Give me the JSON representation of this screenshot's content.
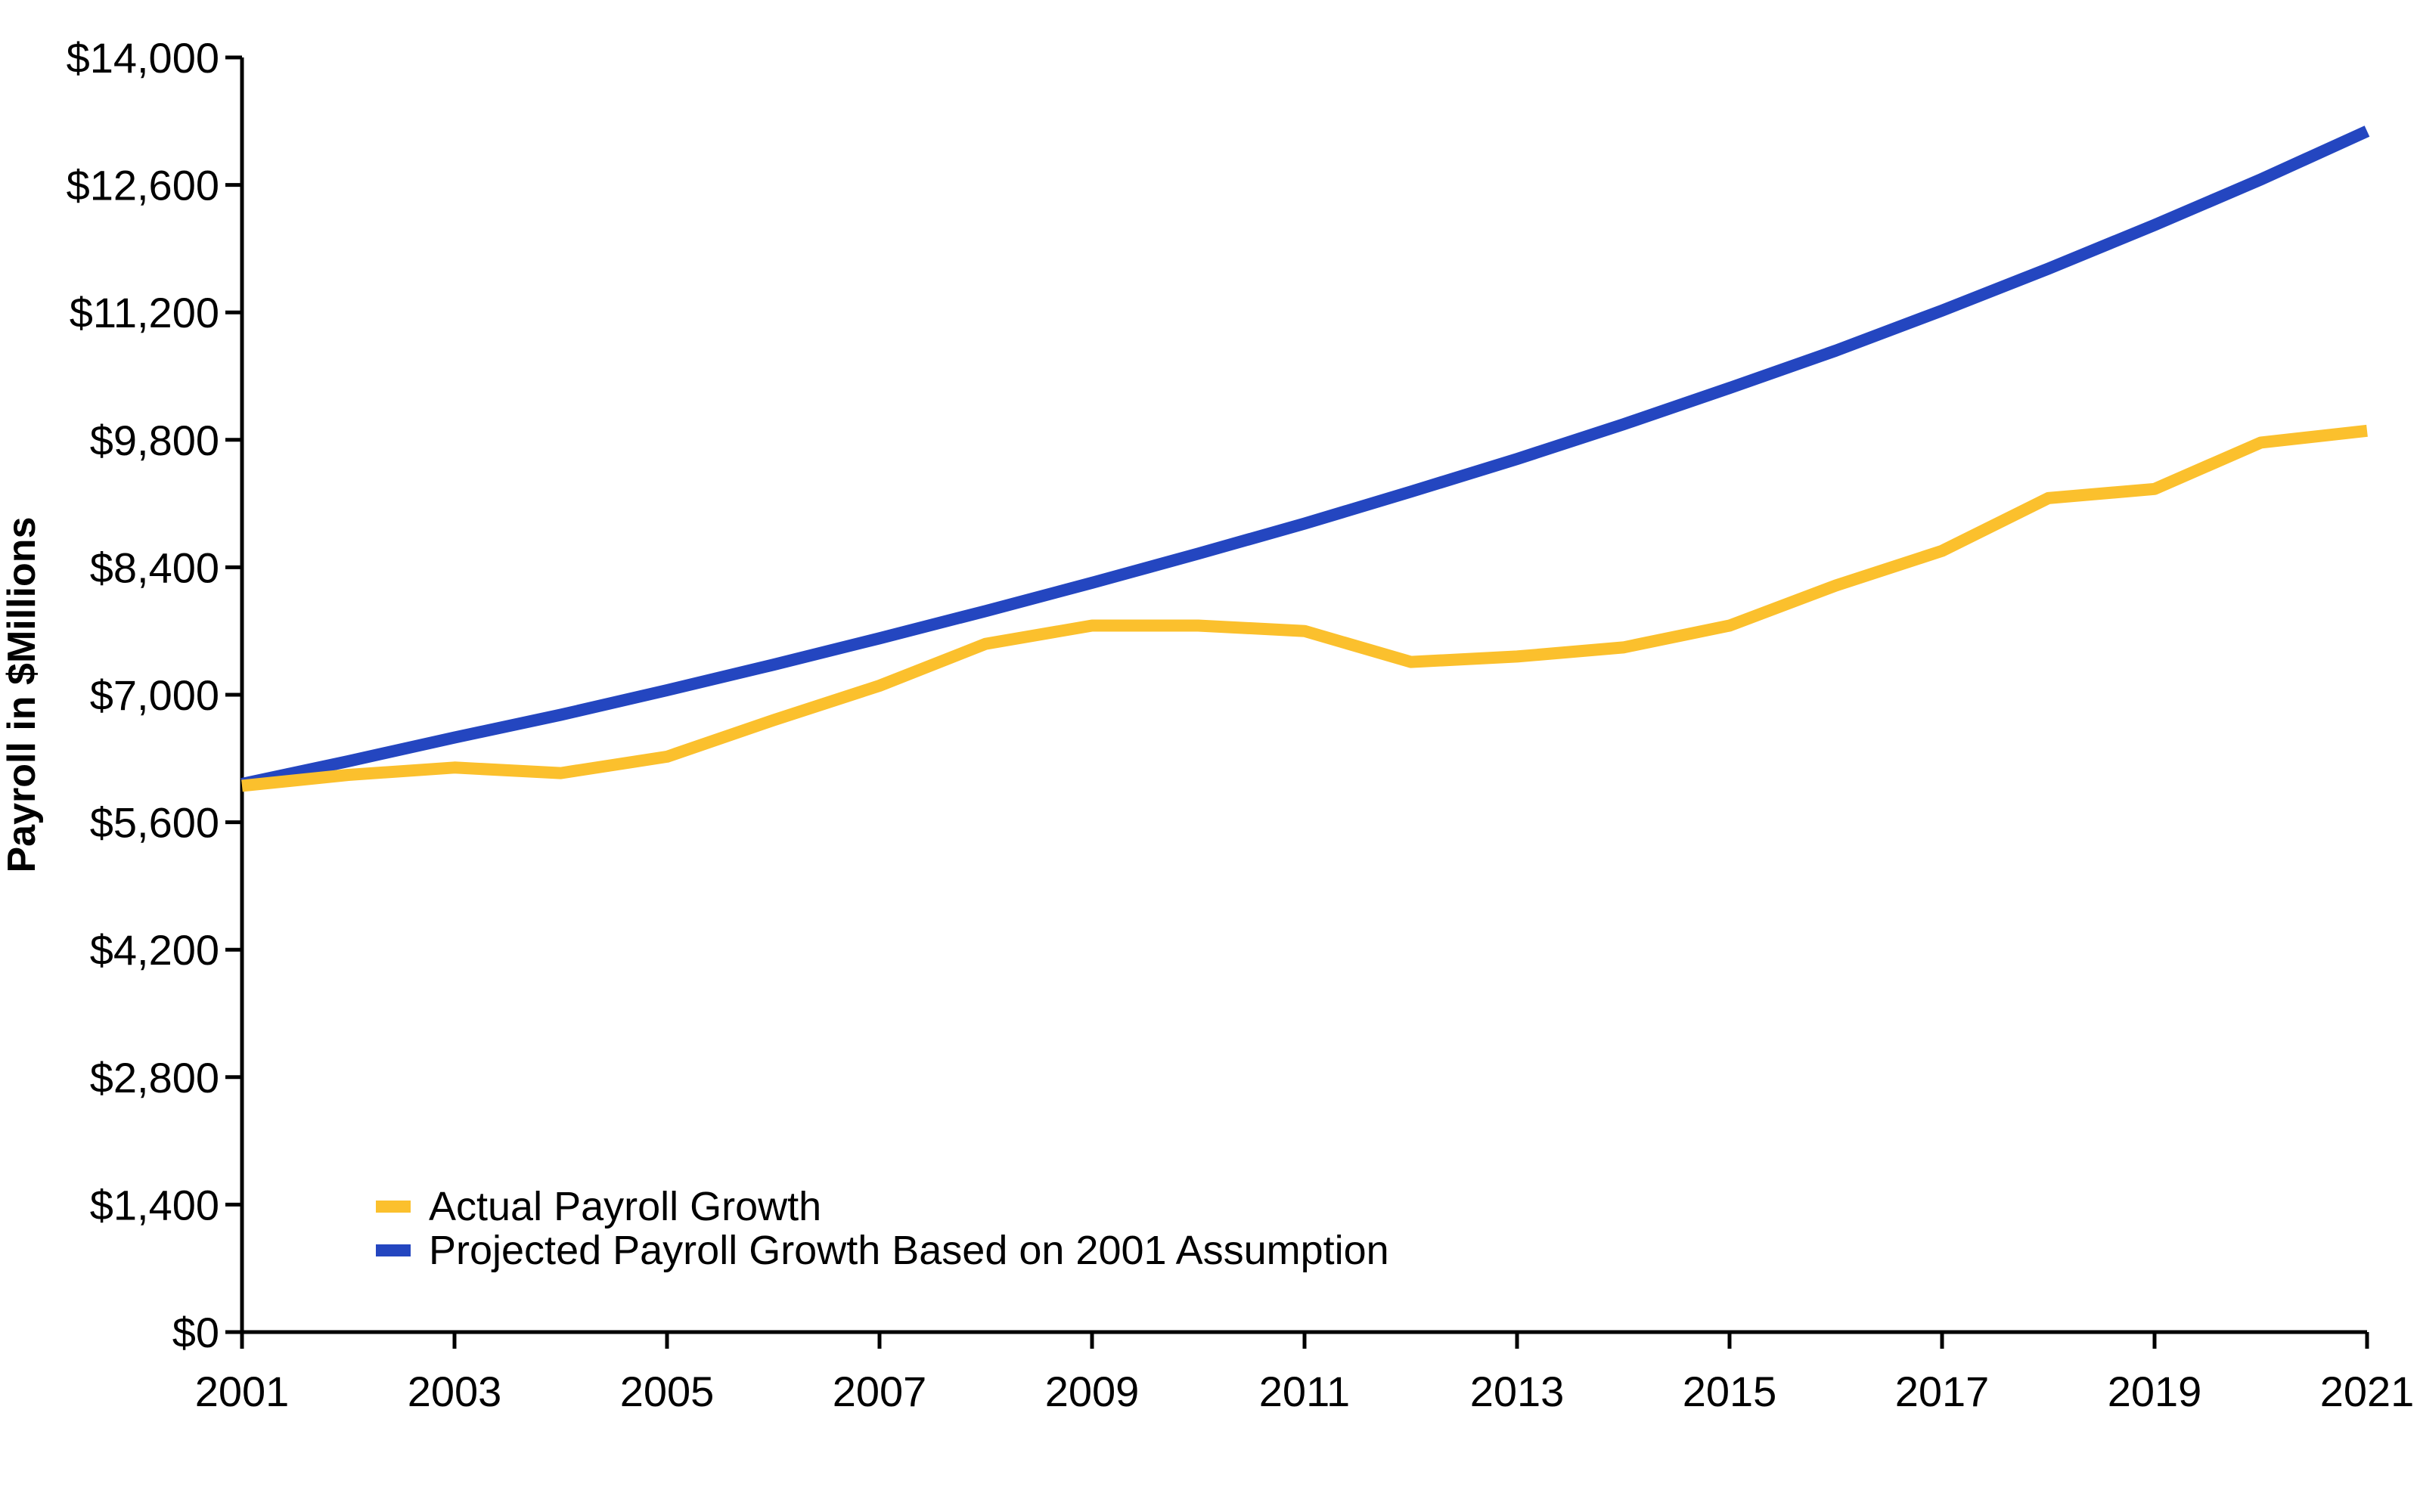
{
  "chart_data": {
    "type": "line",
    "title": "",
    "xlabel": "",
    "ylabel": "Payroll in $Millions",
    "xlim": [
      2001,
      2021
    ],
    "ylim": [
      0,
      14000
    ],
    "x_ticks": [
      "2001",
      "2003",
      "2005",
      "2007",
      "2009",
      "2011",
      "2013",
      "2015",
      "2017",
      "2019",
      "2021"
    ],
    "y_ticks": [
      "$0",
      "$1,400",
      "$2,800",
      "$4,200",
      "$5,600",
      "$7,000",
      "$8,400",
      "$9,800",
      "$11,200",
      "$12,600",
      "$14,000"
    ],
    "grid": false,
    "legend_position": "bottom-left",
    "series": [
      {
        "name": "Actual Payroll Growth",
        "color": "#fbc02d",
        "x": [
          2001,
          2002,
          2003,
          2004,
          2005,
          2006,
          2007,
          2008,
          2009,
          2010,
          2011,
          2012,
          2013,
          2014,
          2015,
          2016,
          2017,
          2018,
          2019,
          2020,
          2021
        ],
        "values": [
          6000,
          6120,
          6200,
          6140,
          6320,
          6720,
          7100,
          7560,
          7760,
          7760,
          7700,
          7360,
          7420,
          7520,
          7760,
          8200,
          8580,
          9160,
          9260,
          9770,
          9900
        ]
      },
      {
        "name": "Projected Payroll Growth Based on 2001 Assumption",
        "color": "#2446c0",
        "x": [
          2001,
          2002,
          2003,
          2004,
          2005,
          2006,
          2007,
          2008,
          2009,
          2010,
          2011,
          2012,
          2013,
          2014,
          2015,
          2016,
          2017,
          2018,
          2019,
          2020,
          2021
        ],
        "values": [
          6020,
          6270,
          6530,
          6780,
          7050,
          7330,
          7620,
          7920,
          8230,
          8550,
          8880,
          9230,
          9590,
          9970,
          10370,
          10780,
          11220,
          11680,
          12160,
          12660,
          13190
        ]
      }
    ]
  }
}
